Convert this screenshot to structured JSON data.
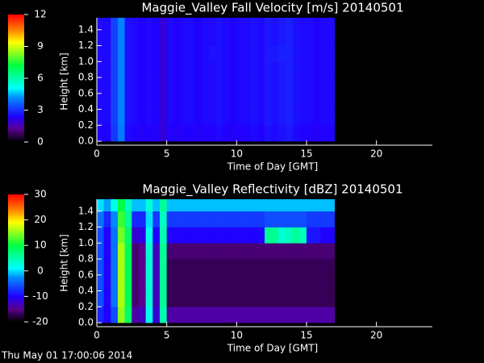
{
  "chart_data": [
    {
      "type": "heatmap",
      "title": "Maggie_Valley Fall Velocity [m/s] 20140501",
      "x_label": "Time of Day [GMT]",
      "y_label": "Height [km]",
      "xlim": [
        0,
        24
      ],
      "xticks": [
        0,
        5,
        10,
        15,
        20
      ],
      "ylim": [
        -0.05,
        1.55
      ],
      "yticks": [
        {
          "value": 0,
          "label": "0.0"
        },
        0.2,
        0.4,
        0.6,
        0.8,
        {
          "value": 1,
          "label": "1.0"
        },
        1.2,
        1.4
      ],
      "zlim": [
        0,
        12
      ],
      "zticks": [
        0,
        3,
        6,
        9,
        12
      ],
      "colormap": [
        [
          0,
          "#000000"
        ],
        [
          0.1,
          "#5a0090"
        ],
        [
          0.2,
          "#2000ff"
        ],
        [
          0.35,
          "#0090ff"
        ],
        [
          0.42,
          "#00ffff"
        ],
        [
          0.6,
          "#00ff40"
        ],
        [
          0.78,
          "#ffff00"
        ],
        [
          0.88,
          "#ff8000"
        ],
        [
          1,
          "#ff0000"
        ]
      ],
      "xbins": [
        0,
        0.5,
        1,
        1.5,
        2,
        2.5,
        3,
        3.5,
        4,
        4.5,
        5,
        5.5,
        6,
        6.5,
        7,
        7.5,
        8,
        8.5,
        9,
        9.5,
        10,
        10.5,
        11,
        11.5,
        12,
        12.5,
        13,
        13.5,
        14,
        14.5,
        15,
        15.5,
        16,
        16.5,
        17
      ],
      "ybins": [
        0,
        0.2,
        0.4,
        0.6,
        0.8,
        1,
        1.2,
        1.4,
        1.6
      ],
      "values": [
        [
          2.4,
          2.4,
          3.1,
          3.9,
          2.5,
          2.4,
          2.3,
          2.4,
          2.3,
          2.0,
          2.4,
          2.3,
          2.4,
          2.4,
          2.3,
          2.4,
          2.4,
          2.5,
          2.4,
          2.3,
          2.4,
          2.4,
          2.5,
          2.4,
          2.6,
          2.5,
          2.6,
          2.7,
          2.5,
          2.4,
          2.4,
          2.3,
          2.4,
          2.4
        ],
        [
          2.5,
          2.5,
          3.2,
          4.0,
          2.6,
          2.5,
          2.4,
          2.5,
          2.4,
          2.0,
          2.5,
          2.4,
          2.5,
          2.5,
          2.4,
          2.5,
          2.5,
          2.6,
          2.5,
          2.4,
          2.5,
          2.5,
          2.6,
          2.5,
          2.7,
          2.6,
          2.7,
          2.8,
          2.6,
          2.5,
          2.5,
          2.4,
          2.5,
          2.5
        ],
        [
          2.5,
          2.5,
          3.2,
          4.0,
          2.6,
          2.5,
          2.4,
          2.5,
          2.4,
          2.0,
          2.5,
          2.4,
          2.5,
          2.5,
          2.4,
          2.5,
          2.5,
          2.6,
          2.5,
          2.4,
          2.5,
          2.5,
          2.6,
          2.5,
          2.7,
          2.6,
          2.7,
          2.8,
          2.6,
          2.5,
          2.5,
          2.4,
          2.5,
          2.5
        ],
        [
          2.5,
          2.5,
          3.2,
          4.0,
          2.6,
          2.5,
          2.4,
          2.5,
          2.4,
          2.0,
          2.5,
          2.4,
          2.5,
          2.5,
          2.4,
          2.5,
          2.5,
          2.6,
          2.5,
          2.4,
          2.5,
          2.5,
          2.6,
          2.5,
          2.7,
          2.6,
          2.7,
          2.8,
          2.6,
          2.5,
          2.5,
          2.4,
          2.5,
          2.5
        ],
        [
          2.5,
          2.5,
          3.2,
          4.0,
          2.6,
          2.5,
          2.4,
          2.5,
          2.4,
          2.0,
          2.5,
          2.4,
          2.5,
          2.5,
          2.4,
          2.5,
          2.5,
          2.6,
          2.5,
          2.4,
          2.5,
          2.5,
          2.6,
          2.5,
          2.7,
          2.6,
          2.7,
          2.8,
          2.6,
          2.5,
          2.5,
          2.4,
          2.5,
          2.5
        ],
        [
          2.5,
          2.5,
          3.2,
          4.0,
          2.6,
          2.5,
          2.4,
          2.5,
          2.4,
          2.0,
          2.5,
          2.4,
          2.5,
          2.5,
          2.4,
          2.5,
          2.6,
          2.6,
          2.5,
          2.4,
          2.5,
          2.5,
          2.6,
          2.5,
          2.7,
          2.7,
          2.8,
          2.8,
          2.6,
          2.5,
          2.5,
          2.4,
          2.5,
          2.5
        ],
        [
          2.5,
          2.5,
          3.2,
          4.0,
          2.6,
          2.5,
          2.4,
          2.5,
          2.4,
          2.0,
          2.5,
          2.4,
          2.5,
          2.5,
          2.4,
          2.5,
          2.5,
          2.6,
          2.5,
          2.4,
          2.5,
          2.5,
          2.6,
          2.5,
          2.7,
          2.6,
          2.7,
          2.8,
          2.6,
          2.5,
          2.5,
          2.4,
          2.5,
          2.5
        ],
        [
          2.5,
          2.5,
          3.2,
          4.0,
          2.6,
          2.5,
          2.4,
          2.5,
          2.4,
          2.0,
          2.5,
          2.4,
          2.5,
          2.5,
          2.4,
          2.5,
          2.5,
          2.6,
          2.5,
          2.4,
          2.5,
          2.5,
          2.6,
          2.5,
          2.7,
          2.6,
          2.7,
          2.8,
          2.6,
          2.5,
          2.5,
          2.4,
          2.5,
          2.5
        ]
      ]
    },
    {
      "type": "heatmap",
      "title": "Maggie_Valley Reflectivity [dBZ] 20140501",
      "x_label": "Time of Day [GMT]",
      "y_label": "Height [km]",
      "xlim": [
        0,
        24
      ],
      "xticks": [
        0,
        5,
        10,
        15,
        20
      ],
      "ylim": [
        -0.05,
        1.55
      ],
      "yticks": [
        {
          "value": 0,
          "label": "0.0"
        },
        0.2,
        0.4,
        0.6,
        0.8,
        {
          "value": 1,
          "label": "1.0"
        },
        1.2,
        1.4
      ],
      "zlim": [
        -20,
        30
      ],
      "zticks": [
        -20,
        -10,
        0,
        10,
        20,
        30
      ],
      "colormap": [
        [
          0,
          "#000000"
        ],
        [
          0.1,
          "#5a0090"
        ],
        [
          0.2,
          "#2000ff"
        ],
        [
          0.35,
          "#0090ff"
        ],
        [
          0.42,
          "#00ffff"
        ],
        [
          0.6,
          "#00ff40"
        ],
        [
          0.78,
          "#ffff00"
        ],
        [
          0.88,
          "#ff8000"
        ],
        [
          1,
          "#ff0000"
        ]
      ],
      "xbins": [
        0,
        0.5,
        1,
        1.5,
        2,
        2.5,
        3,
        3.5,
        4,
        4.5,
        5,
        5.5,
        6,
        6.5,
        7,
        7.5,
        8,
        8.5,
        9,
        9.5,
        10,
        10.5,
        11,
        11.5,
        12,
        12.5,
        13,
        13.5,
        14,
        14.5,
        15,
        15.5,
        16,
        16.5,
        17
      ],
      "ybins": [
        0,
        0.2,
        0.4,
        0.6,
        0.8,
        1,
        1.2,
        1.4,
        1.6
      ],
      "values": [
        [
          -8,
          -10,
          -6,
          15,
          8,
          -14,
          -13,
          2,
          -12,
          5,
          -14,
          -14,
          -14,
          -14,
          -14,
          -14,
          -14,
          -14,
          -14,
          -14,
          -14,
          -14,
          -14,
          -14,
          -14,
          -14,
          -14,
          -14,
          -14,
          -14,
          -14,
          -14,
          -14,
          -14
        ],
        [
          -6,
          -10,
          -4,
          16,
          9,
          -16,
          -15,
          3,
          -13,
          6,
          -17,
          -17,
          -17,
          -17,
          -17,
          -17,
          -17,
          -17,
          -17,
          -17,
          -17,
          -17,
          -17,
          -17,
          -17,
          -17,
          -17,
          -17,
          -17,
          -17,
          -17,
          -17,
          -17,
          -17
        ],
        [
          -6,
          -10,
          -4,
          16,
          9,
          -16,
          -15,
          3,
          -13,
          6,
          -17,
          -17,
          -17,
          -17,
          -17,
          -17,
          -17,
          -17,
          -17,
          -17,
          -17,
          -17,
          -17,
          -17,
          -17,
          -17,
          -17,
          -17,
          -17,
          -17,
          -17,
          -17,
          -17,
          -17
        ],
        [
          -6,
          -10,
          -4,
          16,
          9,
          -16,
          -15,
          3,
          -13,
          6,
          -17,
          -17,
          -17,
          -17,
          -17,
          -17,
          -17,
          -17,
          -17,
          -17,
          -17,
          -17,
          -17,
          -17,
          -17,
          -17,
          -17,
          -17,
          -17,
          -17,
          -17,
          -17,
          -17,
          -17
        ],
        [
          -6,
          -10,
          -4,
          16,
          9,
          -16,
          -15,
          3,
          -13,
          6,
          -16,
          -16,
          -16,
          -16,
          -16,
          -16,
          -16,
          -16,
          -16,
          -16,
          -16,
          -16,
          -16,
          -16,
          -16,
          -16,
          -16,
          -16,
          -16,
          -16,
          -16,
          -16,
          -16,
          -16
        ],
        [
          -6,
          -10,
          -4,
          14,
          8,
          -12,
          -11,
          2,
          -10,
          5,
          -10,
          -10,
          -10,
          -10,
          -10,
          -10,
          -10,
          -10,
          -10,
          -10,
          -10,
          -10,
          -10,
          -10,
          6,
          6,
          3,
          4,
          6,
          4,
          -9,
          -9,
          -10,
          -10
        ],
        [
          -4,
          -8,
          -3,
          12,
          6,
          -8,
          -8,
          0,
          -7,
          4,
          -7,
          -7,
          -7,
          -7,
          -7,
          -7,
          -7,
          -7,
          -7,
          -7,
          -7,
          -7,
          -7,
          -7,
          -6,
          -6,
          -6,
          -6,
          -6,
          -6,
          -7,
          -7,
          -7,
          -7
        ],
        [
          0,
          -2,
          2,
          10,
          4,
          -1,
          -1,
          3,
          -1,
          6,
          -1,
          -1,
          -1,
          -1,
          -1,
          -1,
          -1,
          -1,
          -1,
          -1,
          -1,
          -1,
          -1,
          -1,
          -1,
          -1,
          -1,
          -1,
          -1,
          -1,
          -1,
          -1,
          -1,
          -1
        ]
      ]
    }
  ],
  "footer": "Thu May 01 17:00:06 2014"
}
